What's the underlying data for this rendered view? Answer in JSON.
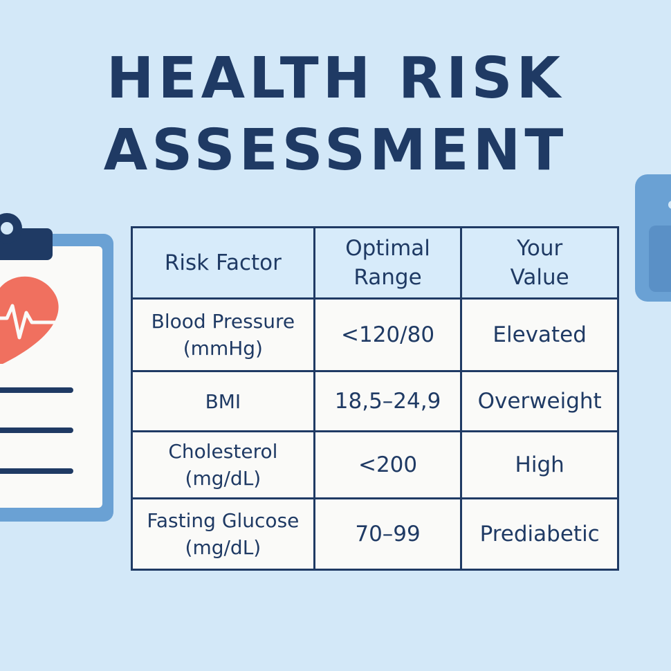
{
  "title": {
    "line1": "HEALTH RISK",
    "line2": "ASSESSMENT"
  },
  "icons": {
    "clipboard": "clipboard-icon",
    "heart": "heart-pulse-icon",
    "right_decoration": "scale-icon"
  },
  "colors": {
    "background": "#d3e8f8",
    "text": "#1f3a64",
    "heart": "#f0705f",
    "clipboard_border": "#6aa1d4",
    "header_fill": "#d7ebfa"
  },
  "table": {
    "headers": {
      "factor": [
        "Risk Factor"
      ],
      "range": [
        "Optimal",
        "Range"
      ],
      "value": [
        "Your",
        "Value"
      ]
    },
    "rows": [
      {
        "factor": [
          "Blood Pressure",
          "(mmHg)"
        ],
        "range": "<120/80",
        "value": "Elevated"
      },
      {
        "factor": [
          "BMI"
        ],
        "range": "18,5–24,9",
        "value": "Overweight"
      },
      {
        "factor": [
          "Cholesterol",
          "(mg/dL)"
        ],
        "range": "<200",
        "value": "High"
      },
      {
        "factor": [
          "Fasting Glucose",
          "(mg/dL)"
        ],
        "range": "70–99",
        "value": "Prediabetic"
      }
    ]
  }
}
